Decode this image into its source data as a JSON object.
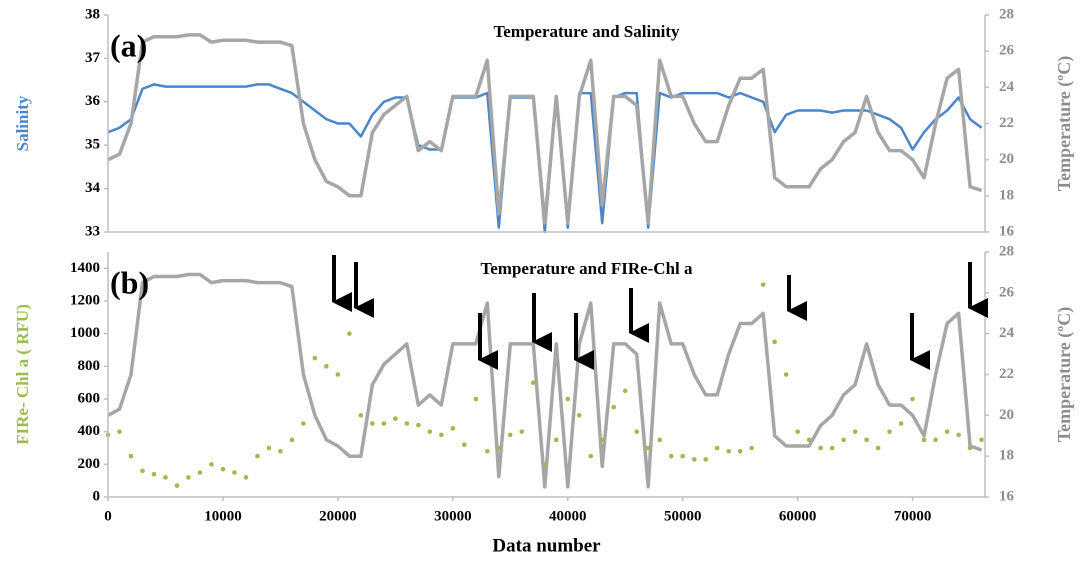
{
  "chart_data": [
    {
      "type": "line",
      "title": "Temperature and Salinity",
      "panel_label": "(a)",
      "ylabel": "Salinity",
      "y2label": "Temperature (ºC)",
      "xlim": [
        0,
        76300
      ],
      "ylim": [
        33,
        38
      ],
      "yticks": [
        33,
        34,
        35,
        36,
        37,
        38
      ],
      "y2lim": [
        16,
        28
      ],
      "y2ticks": [
        16,
        18,
        20,
        22,
        24,
        26,
        28
      ],
      "grid": false,
      "x": [
        0,
        1000,
        2000,
        3000,
        4000,
        5000,
        6000,
        7000,
        8000,
        9000,
        10000,
        11000,
        12000,
        13000,
        14000,
        15000,
        16000,
        17000,
        18000,
        19000,
        20000,
        21000,
        22000,
        23000,
        24000,
        25000,
        26000,
        27000,
        28000,
        29000,
        30000,
        31000,
        32000,
        33000,
        34000,
        35000,
        36000,
        37000,
        38000,
        39000,
        40000,
        41000,
        42000,
        43000,
        44000,
        45000,
        46000,
        47000,
        48000,
        49000,
        50000,
        51000,
        52000,
        53000,
        54000,
        55000,
        56000,
        57000,
        58000,
        59000,
        60000,
        61000,
        62000,
        63000,
        64000,
        65000,
        66000,
        67000,
        68000,
        69000,
        70000,
        71000,
        72000,
        73000,
        74000,
        75000,
        76000
      ],
      "series": [
        {
          "type": "line",
          "color": "#4a86c8",
          "axis": "y",
          "values": [
            35.3,
            35.4,
            35.6,
            36.3,
            36.4,
            36.35,
            36.35,
            36.35,
            36.35,
            36.35,
            36.35,
            36.35,
            36.35,
            36.4,
            36.4,
            36.3,
            36.2,
            36.0,
            35.8,
            35.6,
            35.5,
            35.5,
            35.2,
            35.7,
            36.0,
            36.1,
            36.1,
            35.0,
            34.9,
            34.9,
            36.1,
            36.1,
            36.1,
            36.2,
            33.1,
            36.1,
            36.1,
            36.1,
            33.0,
            36.1,
            33.1,
            36.2,
            36.2,
            33.2,
            36.1,
            36.2,
            36.2,
            33.1,
            36.2,
            36.1,
            36.2,
            36.2,
            36.2,
            36.2,
            36.1,
            36.2,
            36.1,
            36.0,
            35.3,
            35.7,
            35.8,
            35.8,
            35.8,
            35.75,
            35.8,
            35.8,
            35.8,
            35.7,
            35.6,
            35.4,
            34.9,
            35.3,
            35.6,
            35.8,
            36.1,
            35.6,
            35.4
          ]
        },
        {
          "type": "line",
          "color": "#a6a6a6",
          "axis": "y2",
          "values": [
            20.0,
            20.3,
            22.0,
            26.5,
            26.8,
            26.8,
            26.8,
            26.9,
            26.9,
            26.5,
            26.6,
            26.6,
            26.6,
            26.5,
            26.5,
            26.5,
            26.3,
            22.0,
            20.0,
            18.8,
            18.5,
            18.0,
            18.0,
            21.5,
            22.5,
            23.0,
            23.5,
            20.5,
            21.0,
            20.5,
            23.5,
            23.5,
            23.5,
            25.5,
            17.0,
            23.5,
            23.5,
            23.5,
            16.5,
            23.5,
            16.5,
            23.5,
            25.5,
            17.5,
            23.5,
            23.5,
            23.0,
            16.5,
            25.5,
            23.5,
            23.5,
            22.0,
            21.0,
            21.0,
            23.0,
            24.5,
            24.5,
            25.0,
            19.0,
            18.5,
            18.5,
            18.5,
            19.5,
            20.0,
            21.0,
            21.5,
            23.5,
            21.5,
            20.5,
            20.5,
            20.0,
            19.0,
            22.0,
            24.5,
            25.0,
            18.5,
            18.3
          ]
        }
      ]
    },
    {
      "type": "line",
      "title": "Temperature and FIRe-Chl a",
      "panel_label": "(b)",
      "ylabel": "FIRe- Chl a ( RFU)",
      "y2label": "Temperature (ºC)",
      "xlabel": "Data number",
      "xlim": [
        0,
        76300
      ],
      "xticks": [
        0,
        10000,
        20000,
        30000,
        40000,
        50000,
        60000,
        70000
      ],
      "ylim": [
        0,
        1500
      ],
      "yticks": [
        0,
        200,
        400,
        600,
        800,
        1000,
        1200,
        1400
      ],
      "y2lim": [
        16,
        28
      ],
      "y2ticks": [
        16,
        18,
        20,
        22,
        24,
        26,
        28
      ],
      "grid": false,
      "x": [
        0,
        1000,
        2000,
        3000,
        4000,
        5000,
        6000,
        7000,
        8000,
        9000,
        10000,
        11000,
        12000,
        13000,
        14000,
        15000,
        16000,
        17000,
        18000,
        19000,
        20000,
        21000,
        22000,
        23000,
        24000,
        25000,
        26000,
        27000,
        28000,
        29000,
        30000,
        31000,
        32000,
        33000,
        34000,
        35000,
        36000,
        37000,
        38000,
        39000,
        40000,
        41000,
        42000,
        43000,
        44000,
        45000,
        46000,
        47000,
        48000,
        49000,
        50000,
        51000,
        52000,
        53000,
        54000,
        55000,
        56000,
        57000,
        58000,
        59000,
        60000,
        61000,
        62000,
        63000,
        64000,
        65000,
        66000,
        67000,
        68000,
        69000,
        70000,
        71000,
        72000,
        73000,
        74000,
        75000,
        76000
      ],
      "series": [
        {
          "type": "line",
          "color": "#a6a6a6",
          "axis": "y2",
          "values": [
            20.0,
            20.3,
            22.0,
            26.5,
            26.8,
            26.8,
            26.8,
            26.9,
            26.9,
            26.5,
            26.6,
            26.6,
            26.6,
            26.5,
            26.5,
            26.5,
            26.3,
            22.0,
            20.0,
            18.8,
            18.5,
            18.0,
            18.0,
            21.5,
            22.5,
            23.0,
            23.5,
            20.5,
            21.0,
            20.5,
            23.5,
            23.5,
            23.5,
            25.5,
            17.0,
            23.5,
            23.5,
            23.5,
            16.5,
            23.5,
            16.5,
            23.5,
            25.5,
            17.5,
            23.5,
            23.5,
            23.0,
            16.5,
            25.5,
            23.5,
            23.5,
            22.0,
            21.0,
            21.0,
            23.0,
            24.5,
            24.5,
            25.0,
            19.0,
            18.5,
            18.5,
            18.5,
            19.5,
            20.0,
            21.0,
            21.5,
            23.5,
            21.5,
            20.5,
            20.5,
            20.0,
            19.0,
            22.0,
            24.5,
            25.0,
            18.5,
            18.3
          ]
        },
        {
          "type": "scatter",
          "color": "#9bbb4a",
          "axis": "y",
          "values": [
            380,
            400,
            250,
            160,
            140,
            120,
            70,
            120,
            150,
            200,
            170,
            150,
            120,
            250,
            300,
            280,
            350,
            450,
            850,
            800,
            750,
            1000,
            500,
            450,
            450,
            480,
            450,
            440,
            400,
            380,
            420,
            320,
            600,
            280,
            300,
            380,
            400,
            700,
            200,
            350,
            600,
            500,
            250,
            350,
            550,
            650,
            400,
            300,
            350,
            250,
            250,
            230,
            230,
            300,
            280,
            280,
            300,
            1300,
            950,
            750,
            400,
            350,
            300,
            300,
            350,
            400,
            350,
            300,
            400,
            450,
            600,
            350,
            350,
            400,
            380,
            300,
            350
          ]
        }
      ]
    }
  ]
}
